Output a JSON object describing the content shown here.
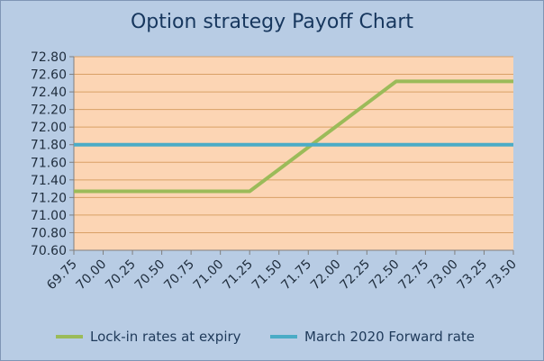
{
  "chart_data": {
    "type": "line",
    "title": "Option strategy Payoff Chart",
    "xlabel": "",
    "ylabel": "",
    "x": [
      "69.75",
      "70.00",
      "70.25",
      "70.50",
      "70.75",
      "71.00",
      "71.25",
      "71.50",
      "71.75",
      "72.00",
      "72.25",
      "72.50",
      "72.75",
      "73.00",
      "73.25",
      "73.50"
    ],
    "ylim": [
      70.6,
      72.8
    ],
    "yticks": [
      "70.60",
      "70.80",
      "71.00",
      "71.20",
      "71.40",
      "71.60",
      "71.80",
      "72.00",
      "72.20",
      "72.40",
      "72.60",
      "72.80"
    ],
    "grid": true,
    "legend_position": "bottom",
    "series": [
      {
        "name": "Lock-in rates at expiry",
        "color": "#9bbb59",
        "values": [
          71.27,
          71.27,
          71.27,
          71.27,
          71.27,
          71.27,
          71.27,
          71.52,
          71.77,
          72.02,
          72.27,
          72.52,
          72.52,
          72.52,
          72.52,
          72.52
        ]
      },
      {
        "name": "March 2020 Forward rate",
        "color": "#4bacc6",
        "values": [
          71.8,
          71.8,
          71.8,
          71.8,
          71.8,
          71.8,
          71.8,
          71.8,
          71.8,
          71.8,
          71.8,
          71.8,
          71.8,
          71.8,
          71.8,
          71.8
        ]
      }
    ]
  },
  "colors": {
    "background": "#b8cce4",
    "plot_area": "#fcd5b4",
    "gridline": "#d9a066",
    "title": "#17375e"
  }
}
